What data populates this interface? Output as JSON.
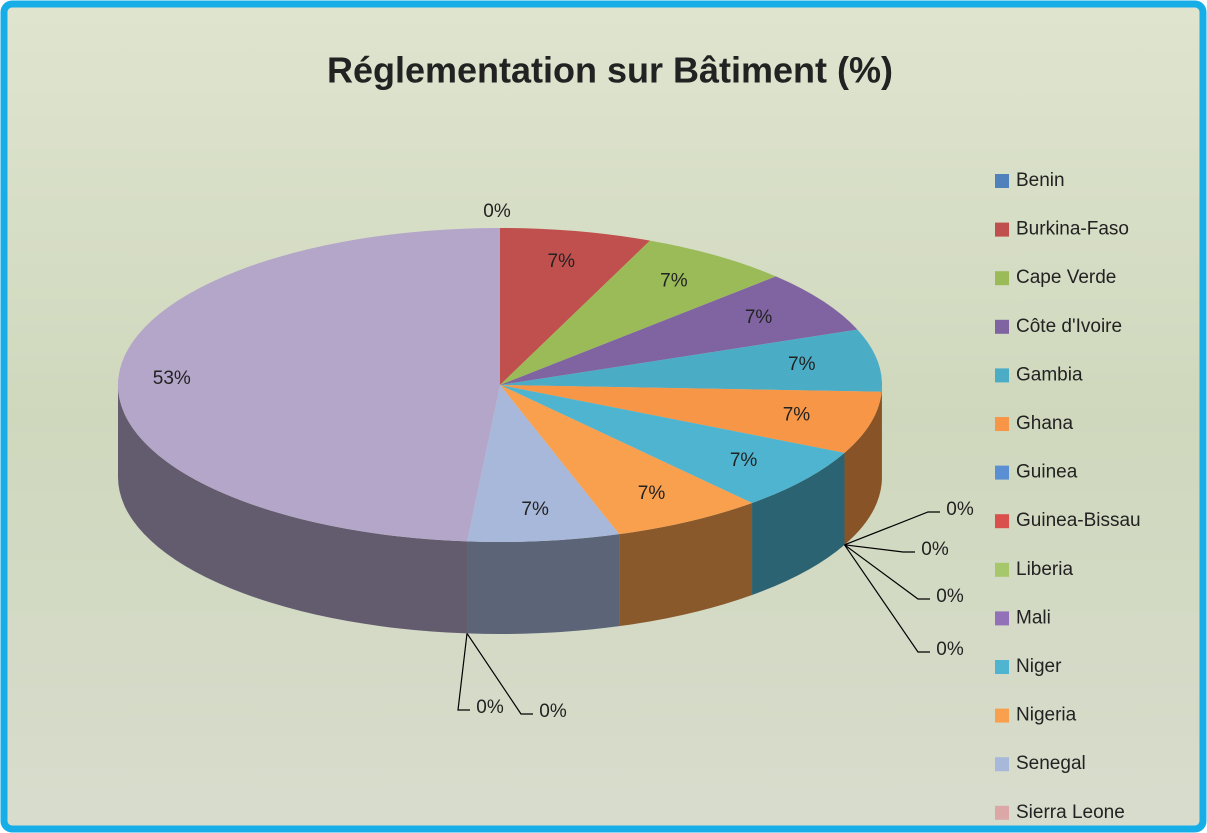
{
  "chart_data": {
    "type": "pie",
    "title": "Réglementation sur Bâtiment (%)",
    "categories": [
      "Benin",
      "Burkina-Faso",
      "Cape Verde",
      "Côte d'Ivoire",
      "Gambia",
      "Ghana",
      "Guinea",
      "Guinea-Bissau",
      "Liberia",
      "Mali",
      "Niger",
      "Nigeria",
      "Senegal",
      "Sierra Leone",
      null,
      null
    ],
    "values": [
      0,
      7,
      7,
      7,
      7,
      7,
      0,
      0,
      0,
      0,
      7,
      7,
      7,
      0,
      0,
      53
    ],
    "value_labels": [
      "0%",
      "7%",
      "7%",
      "7%",
      "7%",
      "7%",
      "0%",
      "0%",
      "0%",
      "0%",
      "7%",
      "7%",
      "7%",
      "0%",
      "0%",
      "53%"
    ],
    "colors": [
      "#4f81bd",
      "#c0504d",
      "#9bbb59",
      "#8064a2",
      "#4bacc6",
      "#f79646",
      "#5b8fd3",
      "#d9504d",
      "#a6c86b",
      "#9271b8",
      "#4fb4d0",
      "#f9a04f",
      "#a8b8da",
      "#dca8a7",
      "#c5d89f",
      "#b4a6c8"
    ],
    "legend": "right"
  }
}
